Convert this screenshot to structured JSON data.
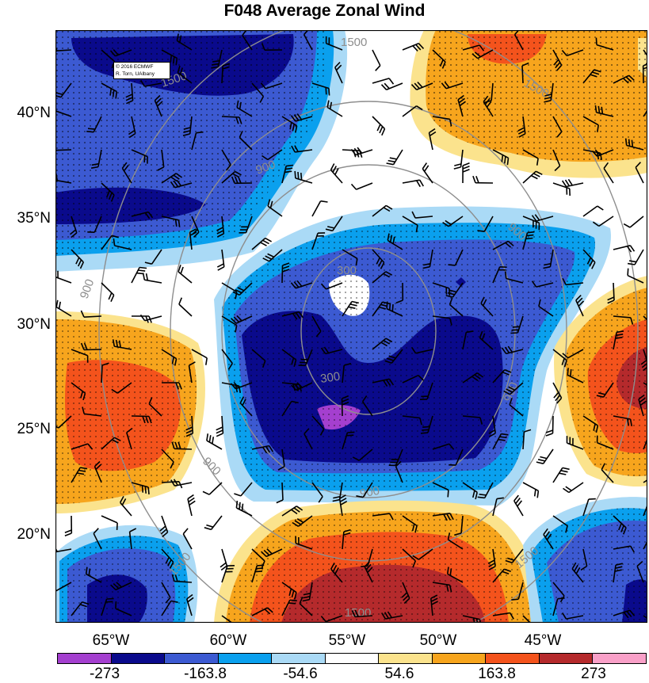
{
  "title": "F048 Average Zonal Wind",
  "credit": {
    "line1": "© 2016 ECMWF",
    "line2": "R. Torn, UAlbany"
  },
  "latitude_labels": [
    "40°N",
    "35°N",
    "30°N",
    "25°N",
    "20°N"
  ],
  "longitude_labels": [
    "65°W",
    "60°W",
    "55°W",
    "50°W",
    "45°W"
  ],
  "colorbar": {
    "colors": [
      "#a43fcf",
      "#0a0a8c",
      "#3c5ad2",
      "#0aa0ee",
      "#aadaf6",
      "#ffffff",
      "#fbe38d",
      "#f7a51d",
      "#f4531c",
      "#b52a2c",
      "#f9a0c8"
    ],
    "labels": [
      "-273",
      "-163.8",
      "-54.6",
      "54.6",
      "163.8",
      "273"
    ]
  },
  "contour_labels": [
    "1500",
    "1500",
    "1500",
    "900",
    "900",
    "900",
    "900",
    "900",
    "300",
    "300",
    "900",
    "1500",
    "1500",
    "1500"
  ]
}
